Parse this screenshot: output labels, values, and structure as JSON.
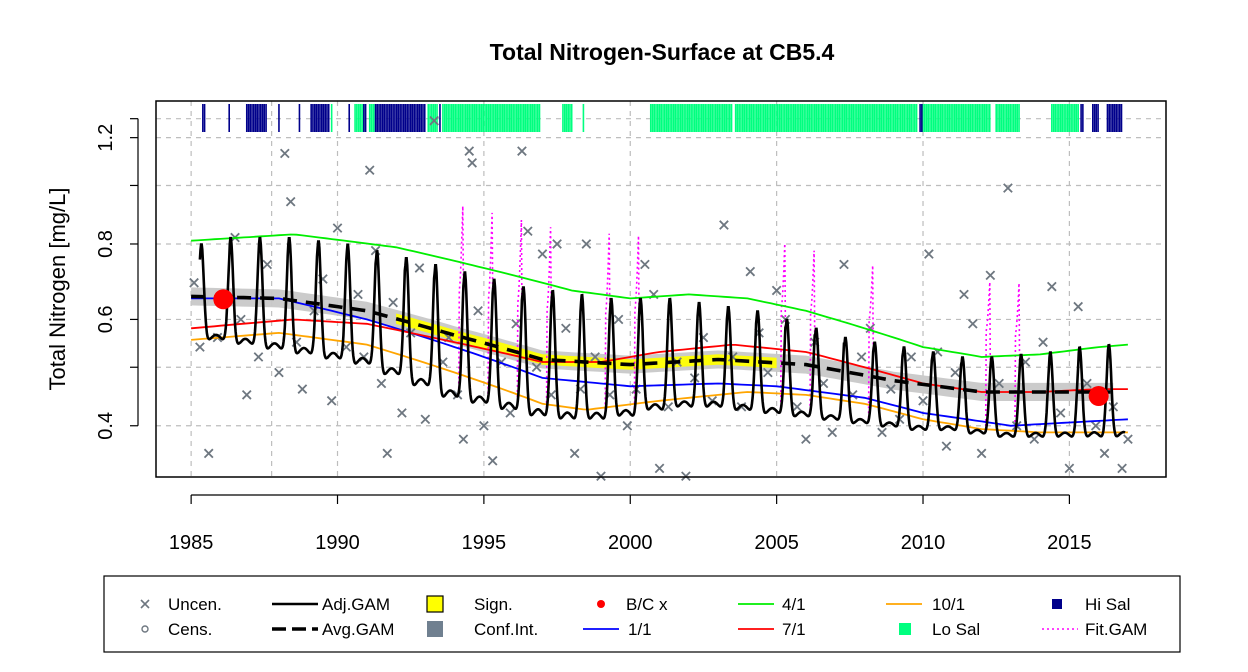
{
  "chart_data": {
    "type": "line",
    "title": "Total Nitrogen-Surface at CB5.4",
    "xlabel": "",
    "ylabel": "Total Nitrogen [mg/L]",
    "xlim": [
      1983.8,
      2018.3
    ],
    "ylim_log": [
      0.329,
      1.38
    ],
    "y_scale": "log",
    "x_ticks": [
      1985,
      1990,
      1995,
      2000,
      2005,
      2010,
      2015
    ],
    "x_tick_labels": [
      "1985",
      "1990",
      "1995",
      "2000",
      "2005",
      "2010",
      "2015"
    ],
    "y_ticks": [
      0.4,
      0.6,
      0.8,
      1.2
    ],
    "y_tick_labels": [
      "0.4",
      "0.6",
      "0.8",
      "1.2"
    ],
    "y_grid_extra": [
      0.5,
      1.0,
      1.29
    ],
    "x_grid_extra": [
      1987.75
    ],
    "grid": true,
    "legend_position": "bottom",
    "colors": {
      "uncen": "#6e7780",
      "adj_gam": "#000000",
      "avg_gam": "#000000",
      "sign": "#ffff00",
      "conf_int": "#708090",
      "bc": "#ff0000",
      "one_one": "#0000ff",
      "four_one": "#00ee00",
      "seven_one": "#ff0000",
      "ten_one": "#ffa500",
      "hi_sal": "#00008b",
      "lo_sal": "#00ff7f",
      "fit_gam": "#ff00ff"
    },
    "series": [
      {
        "name": "4/1",
        "x": [
          1985,
          1988.5,
          1992,
          1995,
          1998,
          2000,
          2002,
          2004,
          2006,
          2008,
          2010,
          2012,
          2014,
          2016,
          2017
        ],
        "y": [
          0.81,
          0.83,
          0.79,
          0.73,
          0.67,
          0.65,
          0.66,
          0.65,
          0.62,
          0.58,
          0.54,
          0.52,
          0.525,
          0.54,
          0.545
        ]
      },
      {
        "name": "1/1",
        "x": [
          1985,
          1988,
          1991,
          1994,
          1997,
          2000,
          2003,
          2005,
          2008,
          2010,
          2013,
          2015,
          2017
        ],
        "y": [
          0.65,
          0.65,
          0.6,
          0.54,
          0.48,
          0.465,
          0.47,
          0.465,
          0.445,
          0.42,
          0.4,
          0.405,
          0.41
        ]
      },
      {
        "name": "7/1",
        "x": [
          1985,
          1988.5,
          1991,
          1994,
          1997,
          1999,
          2001,
          2003.5,
          2006,
          2008,
          2010,
          2012,
          2014,
          2016,
          2017
        ],
        "y": [
          0.58,
          0.6,
          0.59,
          0.55,
          0.51,
          0.51,
          0.53,
          0.545,
          0.53,
          0.5,
          0.47,
          0.455,
          0.455,
          0.46,
          0.46
        ]
      },
      {
        "name": "10/1",
        "x": [
          1985,
          1988,
          1991,
          1994,
          1997,
          1998.5,
          2001,
          2004,
          2006,
          2008,
          2010,
          2012,
          2014,
          2016,
          2017
        ],
        "y": [
          0.555,
          0.57,
          0.545,
          0.49,
          0.435,
          0.425,
          0.44,
          0.455,
          0.45,
          0.435,
          0.41,
          0.395,
          0.39,
          0.39,
          0.39
        ]
      },
      {
        "name": "Avg.GAM",
        "x": [
          1985,
          1988,
          1991,
          1994,
          1997,
          2000,
          2003,
          2006,
          2009,
          2012,
          2015,
          2016.5
        ],
        "y": [
          0.655,
          0.65,
          0.62,
          0.565,
          0.515,
          0.505,
          0.515,
          0.505,
          0.475,
          0.455,
          0.455,
          0.455
        ]
      },
      {
        "name": "Adj.GAM",
        "x": [
          1985.3,
          2016.9
        ],
        "y": [
          0.6,
          0.44
        ],
        "seasonal_peaks": [
          0.8,
          0.82,
          0.82,
          0.82,
          0.81,
          0.8,
          0.78,
          0.76,
          0.74,
          0.72,
          0.7,
          0.68,
          0.67,
          0.66,
          0.65,
          0.65,
          0.65,
          0.64,
          0.63,
          0.62,
          0.6,
          0.58,
          0.56,
          0.55,
          0.54,
          0.53,
          0.52,
          0.52,
          0.525,
          0.53,
          0.54,
          0.545
        ],
        "seasonal_troughs": [
          0.55,
          0.54,
          0.53,
          0.52,
          0.51,
          0.5,
          0.48,
          0.46,
          0.44,
          0.43,
          0.42,
          0.41,
          0.405,
          0.405,
          0.41,
          0.42,
          0.425,
          0.425,
          0.42,
          0.415,
          0.41,
          0.405,
          0.4,
          0.395,
          0.39,
          0.39,
          0.385,
          0.38,
          0.38,
          0.38,
          0.38,
          0.38
        ]
      }
    ],
    "bc_points": [
      {
        "x": 1986.1,
        "y": 0.648
      },
      {
        "x": 2016,
        "y": 0.448
      }
    ],
    "uncen_points": [
      [
        1985.1,
        0.69
      ],
      [
        1985.3,
        0.54
      ],
      [
        1985.6,
        0.36
      ],
      [
        1985.9,
        0.56
      ],
      [
        1986.2,
        0.65
      ],
      [
        1986.5,
        0.82
      ],
      [
        1986.7,
        0.6
      ],
      [
        1986.9,
        0.45
      ],
      [
        1987.3,
        0.52
      ],
      [
        1987.6,
        0.74
      ],
      [
        1988.0,
        0.49
      ],
      [
        1988.2,
        1.13
      ],
      [
        1988.4,
        0.94
      ],
      [
        1988.6,
        0.55
      ],
      [
        1988.8,
        0.46
      ],
      [
        1989.2,
        0.62
      ],
      [
        1989.5,
        0.7
      ],
      [
        1989.8,
        0.44
      ],
      [
        1990.0,
        0.85
      ],
      [
        1990.3,
        0.54
      ],
      [
        1990.7,
        0.66
      ],
      [
        1990.9,
        0.52
      ],
      [
        1991.1,
        1.06
      ],
      [
        1991.3,
        0.78
      ],
      [
        1991.5,
        0.47
      ],
      [
        1991.7,
        0.36
      ],
      [
        1991.9,
        0.64
      ],
      [
        1992.2,
        0.42
      ],
      [
        1992.5,
        0.57
      ],
      [
        1992.8,
        0.73
      ],
      [
        1993.0,
        0.41
      ],
      [
        1993.3,
        1.28
      ],
      [
        1993.6,
        0.51
      ],
      [
        1993.8,
        0.56
      ],
      [
        1994.1,
        0.45
      ],
      [
        1994.3,
        0.38
      ],
      [
        1994.5,
        1.14
      ],
      [
        1994.6,
        1.09
      ],
      [
        1994.8,
        0.62
      ],
      [
        1995.0,
        0.4
      ],
      [
        1995.3,
        0.35
      ],
      [
        1995.6,
        0.51
      ],
      [
        1995.9,
        0.42
      ],
      [
        1996.1,
        0.59
      ],
      [
        1996.3,
        1.14
      ],
      [
        1996.5,
        0.84
      ],
      [
        1996.8,
        0.5
      ],
      [
        1997.0,
        0.77
      ],
      [
        1997.3,
        0.45
      ],
      [
        1997.5,
        0.8
      ],
      [
        1997.8,
        0.58
      ],
      [
        1998.1,
        0.36
      ],
      [
        1998.3,
        0.46
      ],
      [
        1998.5,
        0.8
      ],
      [
        1998.8,
        0.52
      ],
      [
        1999.0,
        0.33
      ],
      [
        1999.3,
        0.45
      ],
      [
        1999.6,
        0.6
      ],
      [
        1999.9,
        0.4
      ],
      [
        2000.2,
        0.46
      ],
      [
        2000.5,
        0.74
      ],
      [
        2000.8,
        0.66
      ],
      [
        2001.0,
        0.34
      ],
      [
        2001.3,
        0.43
      ],
      [
        2001.6,
        0.51
      ],
      [
        2001.9,
        0.33
      ],
      [
        2002.2,
        0.48
      ],
      [
        2002.5,
        0.56
      ],
      [
        2002.8,
        0.44
      ],
      [
        2003.2,
        0.86
      ],
      [
        2003.5,
        0.52
      ],
      [
        2003.8,
        0.43
      ],
      [
        2004.1,
        0.72
      ],
      [
        2004.4,
        0.57
      ],
      [
        2004.7,
        0.49
      ],
      [
        2005.0,
        0.67
      ],
      [
        2005.3,
        0.6
      ],
      [
        2005.7,
        0.43
      ],
      [
        2006.0,
        0.38
      ],
      [
        2006.3,
        0.55
      ],
      [
        2006.6,
        0.47
      ],
      [
        2006.9,
        0.39
      ],
      [
        2007.3,
        0.74
      ],
      [
        2007.6,
        0.45
      ],
      [
        2007.9,
        0.52
      ],
      [
        2008.2,
        0.58
      ],
      [
        2008.6,
        0.39
      ],
      [
        2008.9,
        0.46
      ],
      [
        2009.2,
        0.41
      ],
      [
        2009.6,
        0.52
      ],
      [
        2010.0,
        0.44
      ],
      [
        2010.2,
        0.77
      ],
      [
        2010.5,
        0.53
      ],
      [
        2010.8,
        0.37
      ],
      [
        2011.1,
        0.49
      ],
      [
        2011.4,
        0.66
      ],
      [
        2011.7,
        0.59
      ],
      [
        2012.0,
        0.36
      ],
      [
        2012.3,
        0.71
      ],
      [
        2012.6,
        0.47
      ],
      [
        2012.9,
        0.99
      ],
      [
        2013.2,
        0.4
      ],
      [
        2013.5,
        0.51
      ],
      [
        2013.8,
        0.38
      ],
      [
        2014.1,
        0.55
      ],
      [
        2014.4,
        0.68
      ],
      [
        2014.7,
        0.42
      ],
      [
        2015.0,
        0.34
      ],
      [
        2015.3,
        0.63
      ],
      [
        2015.6,
        0.47
      ],
      [
        2015.9,
        0.4
      ],
      [
        2016.2,
        0.36
      ],
      [
        2016.5,
        0.43
      ],
      [
        2016.8,
        0.34
      ],
      [
        2017.0,
        0.38
      ]
    ],
    "salinity_rug": {
      "hi_sal": [
        [
          1985.4,
          1985.5
        ],
        [
          1986.3,
          1986.35
        ],
        [
          1986.9,
          1987.6
        ],
        [
          1988.0,
          1988.05
        ],
        [
          1988.7,
          1988.75
        ],
        [
          1989.1,
          1989.75
        ],
        [
          1990.4,
          1990.45
        ],
        [
          1990.9,
          1991.0
        ],
        [
          1991.3,
          1993.0
        ],
        [
          1993.5,
          1993.55
        ]
      ],
      "lo_sal": [
        [
          1989.8,
          1989.85
        ],
        [
          1990.6,
          1990.95
        ],
        [
          1991.1,
          1991.3
        ],
        [
          1993.1,
          1993.4
        ],
        [
          1993.6,
          1996.9
        ],
        [
          1997.7,
          1998.0
        ],
        [
          1998.4,
          1998.45
        ],
        [
          2000.7,
          2003.5
        ],
        [
          2003.6,
          2009.8
        ],
        [
          2010.0,
          2012.3
        ],
        [
          2012.5,
          2013.3
        ],
        [
          2014.4,
          2015.3
        ]
      ],
      "hi_sal_late": [
        [
          2009.9,
          2010.0
        ],
        [
          2015.4,
          2015.5
        ],
        [
          2015.8,
          2016.0
        ],
        [
          2016.3,
          2016.8
        ]
      ]
    }
  },
  "legend": {
    "items": [
      {
        "key": "uncen",
        "label": "Uncen."
      },
      {
        "key": "cens",
        "label": "Cens."
      },
      {
        "key": "adj_gam",
        "label": "Adj.GAM"
      },
      {
        "key": "avg_gam",
        "label": "Avg.GAM"
      },
      {
        "key": "sign",
        "label": "Sign."
      },
      {
        "key": "conf_int",
        "label": "Conf.Int."
      },
      {
        "key": "bc",
        "label": "B/C x"
      },
      {
        "key": "one_one",
        "label": "1/1"
      },
      {
        "key": "four_one",
        "label": "4/1"
      },
      {
        "key": "seven_one",
        "label": "7/1"
      },
      {
        "key": "ten_one",
        "label": "10/1"
      },
      {
        "key": "lo_sal",
        "label": "Lo Sal"
      },
      {
        "key": "hi_sal",
        "label": "Hi Sal"
      },
      {
        "key": "fit_gam",
        "label": "Fit.GAM"
      }
    ]
  }
}
